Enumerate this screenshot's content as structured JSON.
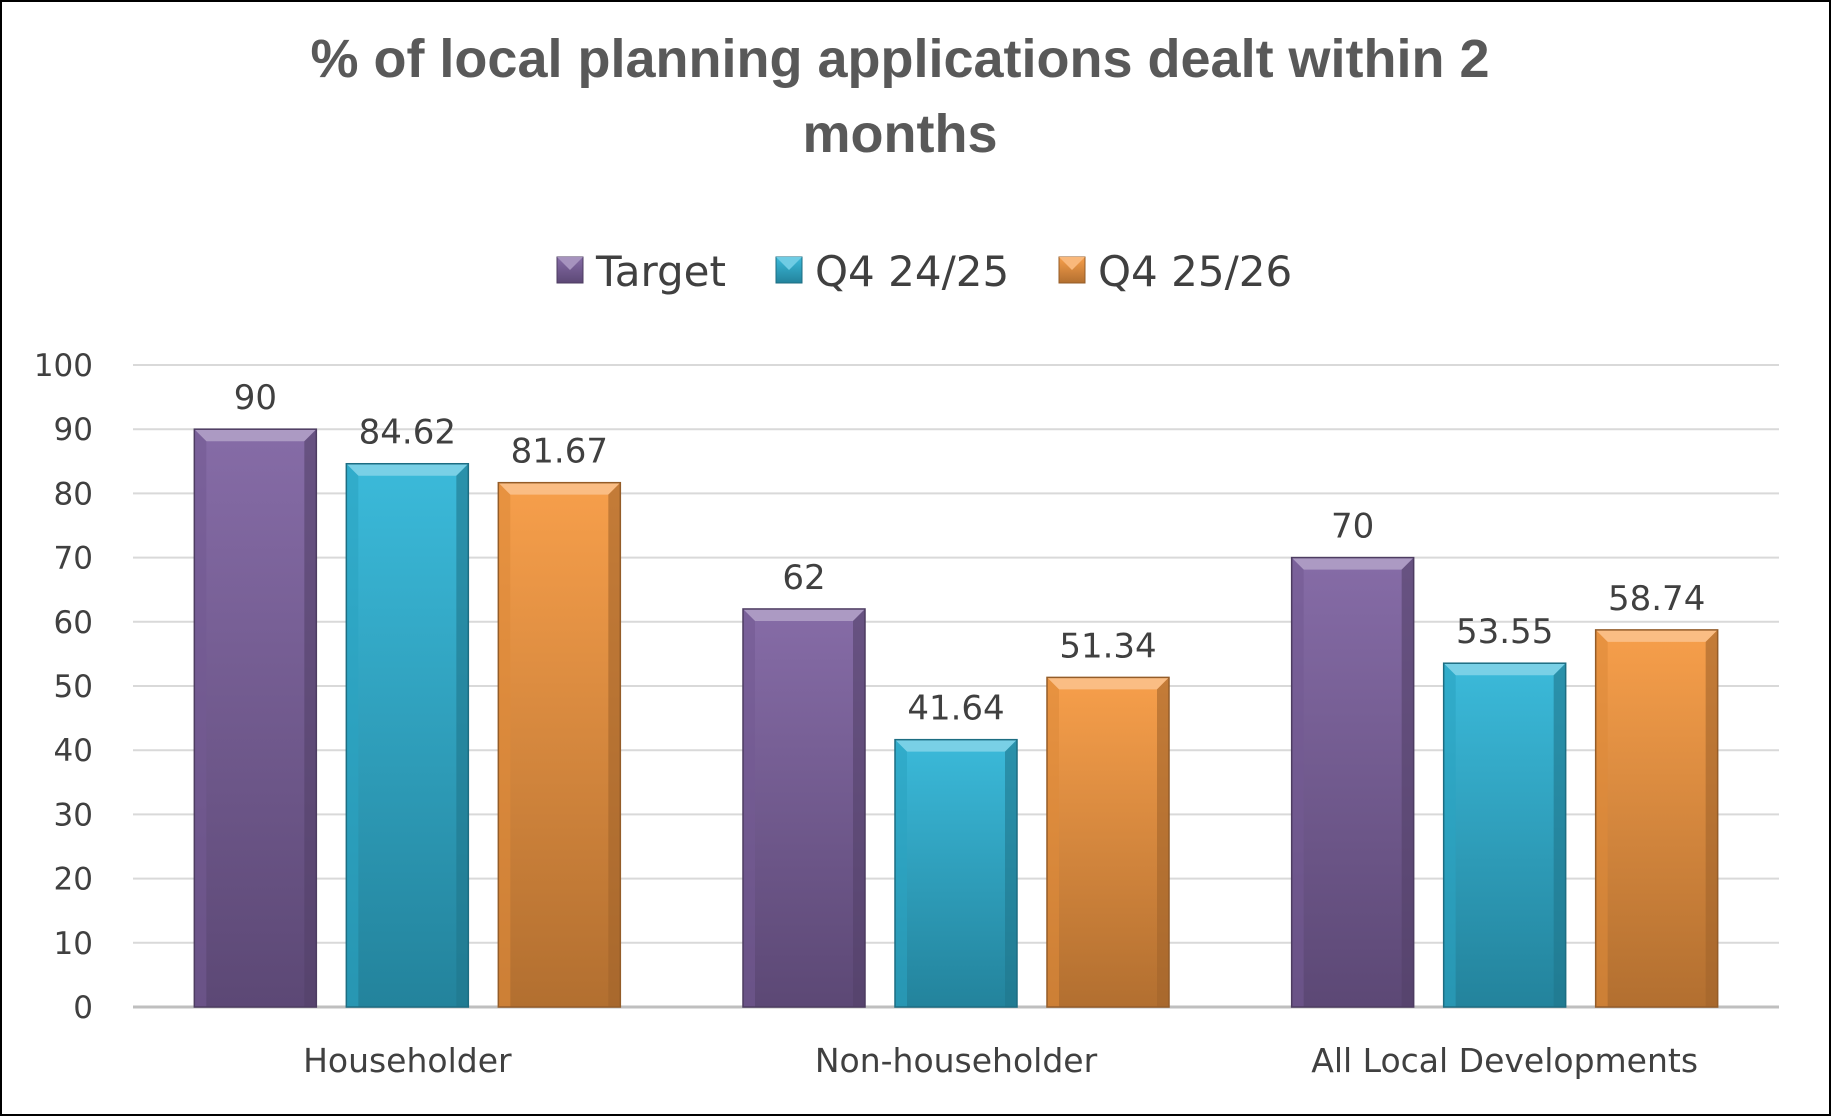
{
  "chart_data": {
    "type": "bar",
    "title_lines": [
      "% of local planning applications dealt within 2",
      "months"
    ],
    "categories": [
      "Householder",
      "Non-householder",
      "All Local Developments"
    ],
    "series": [
      {
        "name": "Target",
        "values": [
          90,
          62,
          70
        ],
        "color": "#8064A2"
      },
      {
        "name": "Q4 24/25",
        "values": [
          84.62,
          41.64,
          53.55
        ],
        "color": "#31B6D8"
      },
      {
        "name": "Q4 25/26",
        "values": [
          81.67,
          51.34,
          58.74
        ],
        "color": "#F79A42"
      }
    ],
    "data_labels": [
      [
        "90",
        "62",
        "70"
      ],
      [
        "84.62",
        "41.64",
        "53.55"
      ],
      [
        "81.67",
        "51.34",
        "58.74"
      ]
    ],
    "ylim": [
      0,
      100
    ],
    "yticks": [
      0,
      10,
      20,
      30,
      40,
      50,
      60,
      70,
      80,
      90,
      100
    ],
    "grid": true,
    "legend_position": "top"
  }
}
